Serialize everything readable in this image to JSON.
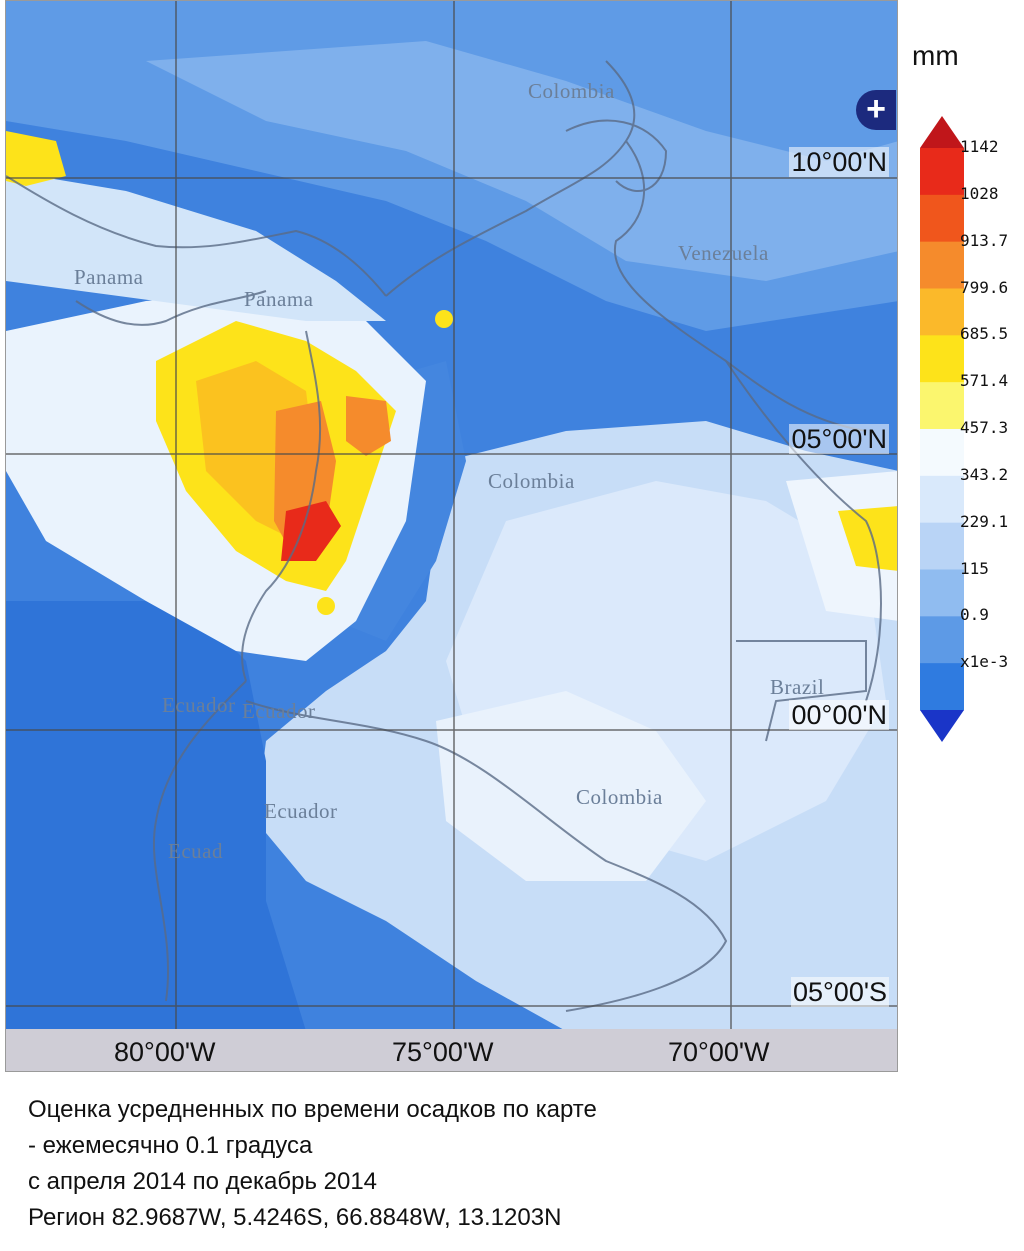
{
  "map": {
    "latitude_labels": [
      "10°00'N",
      "05°00'N",
      "00°00'N",
      "05°00'S"
    ],
    "longitude_labels": [
      "80°00'W",
      "75°00'W",
      "70°00'W"
    ],
    "country_labels": [
      {
        "text": "Colombia"
      },
      {
        "text": "Venezuela"
      },
      {
        "text": "Panama"
      },
      {
        "text": "Panama"
      },
      {
        "text": "Colombia"
      },
      {
        "text": "Ecuador"
      },
      {
        "text": "Ecuador"
      },
      {
        "text": "Brazil"
      },
      {
        "text": "Ecuador"
      },
      {
        "text": "Colombia"
      },
      {
        "text": "Ecuad"
      }
    ],
    "zoom_label": "+"
  },
  "legend": {
    "unit": "mm",
    "ticks": [
      "1142",
      "1028",
      "913.7",
      "799.6",
      "685.5",
      "571.4",
      "457.3",
      "343.2",
      "229.1",
      "115",
      "0.9",
      "x1e-3"
    ],
    "colors": [
      "#e82a1a",
      "#f0561c",
      "#f58b2c",
      "#fbb92a",
      "#fde31a",
      "#fbf66e",
      "#f4fafe",
      "#d9e9fb",
      "#b9d4f6",
      "#90bcf0",
      "#5d9ae6",
      "#2f7be0"
    ],
    "over_color": "#c0161a",
    "under_color": "#1a35c8"
  },
  "caption": {
    "line1": "Оценка усредненных по времени осадков по карте",
    "line2": "- ежемесячно 0.1 градуса",
    "line3": "с апреля 2014 по декабрь 2014",
    "line4": "Регион 82.9687W, 5.4246S, 66.8848W, 13.1203N"
  }
}
